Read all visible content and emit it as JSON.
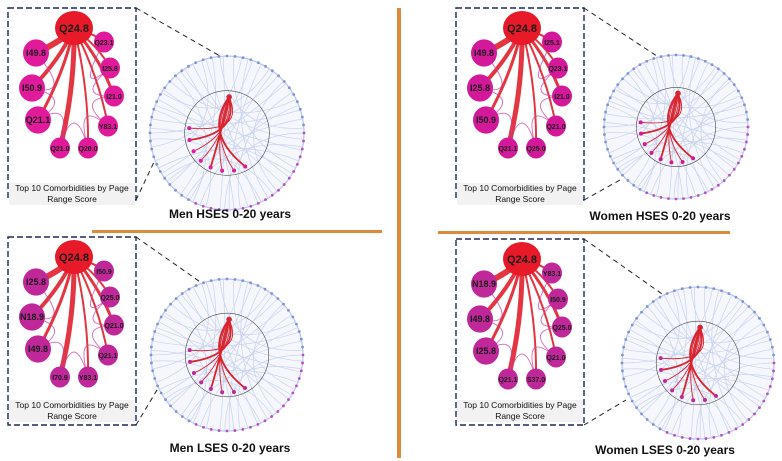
{
  "panels": [
    {
      "id": "men-hses",
      "caption": "Men HSES 0-20 years",
      "inset_label": "Top 10 Comorbidities by Page Range Score",
      "node_color": "#e01a9a",
      "top_node": "Q24.8",
      "top_color": "#e81a2a",
      "nodes": [
        "I49.8",
        "I50.9",
        "Q21.1",
        "Q21.0",
        "Q20.0",
        "Y83.1",
        "I21.0",
        "I25.8",
        "Q23.1"
      ]
    },
    {
      "id": "women-hses",
      "caption": "Women HSES 0-20 years",
      "inset_label": "Top 10 Comorbidities by Page Range Score",
      "node_color": "#d4189a",
      "top_node": "Q24.8",
      "top_color": "#e81a2a",
      "nodes": [
        "I49.8",
        "I25.8",
        "I50.9",
        "Q21.1",
        "Q25.0",
        "Q21.0",
        "I21.0",
        "Q23.1",
        "I25.1"
      ]
    },
    {
      "id": "men-lses",
      "caption": "Men LSES 0-20 years",
      "inset_label": "Top 10 Comorbidities by Page Range Score",
      "node_color": "#c0289a",
      "top_node": "Q24.8",
      "top_color": "#e81a2a",
      "nodes": [
        "I25.8",
        "N18.9",
        "I49.8",
        "I70.9",
        "Y83.1",
        "Q21.1",
        "Q21.0",
        "Q25.0",
        "I50.9"
      ]
    },
    {
      "id": "women-lses",
      "caption": "Women LSES 0-20 years",
      "inset_label": "Top 10 Comorbidities by Page Range Score",
      "node_color": "#c0289a",
      "top_node": "Q24.8",
      "top_color": "#e81a2a",
      "nodes": [
        "N18.9",
        "I49.8",
        "I25.8",
        "Q21.1",
        "S37.0",
        "Q21.0",
        "Q25.0",
        "I50.9",
        "Y83.1"
      ]
    }
  ]
}
